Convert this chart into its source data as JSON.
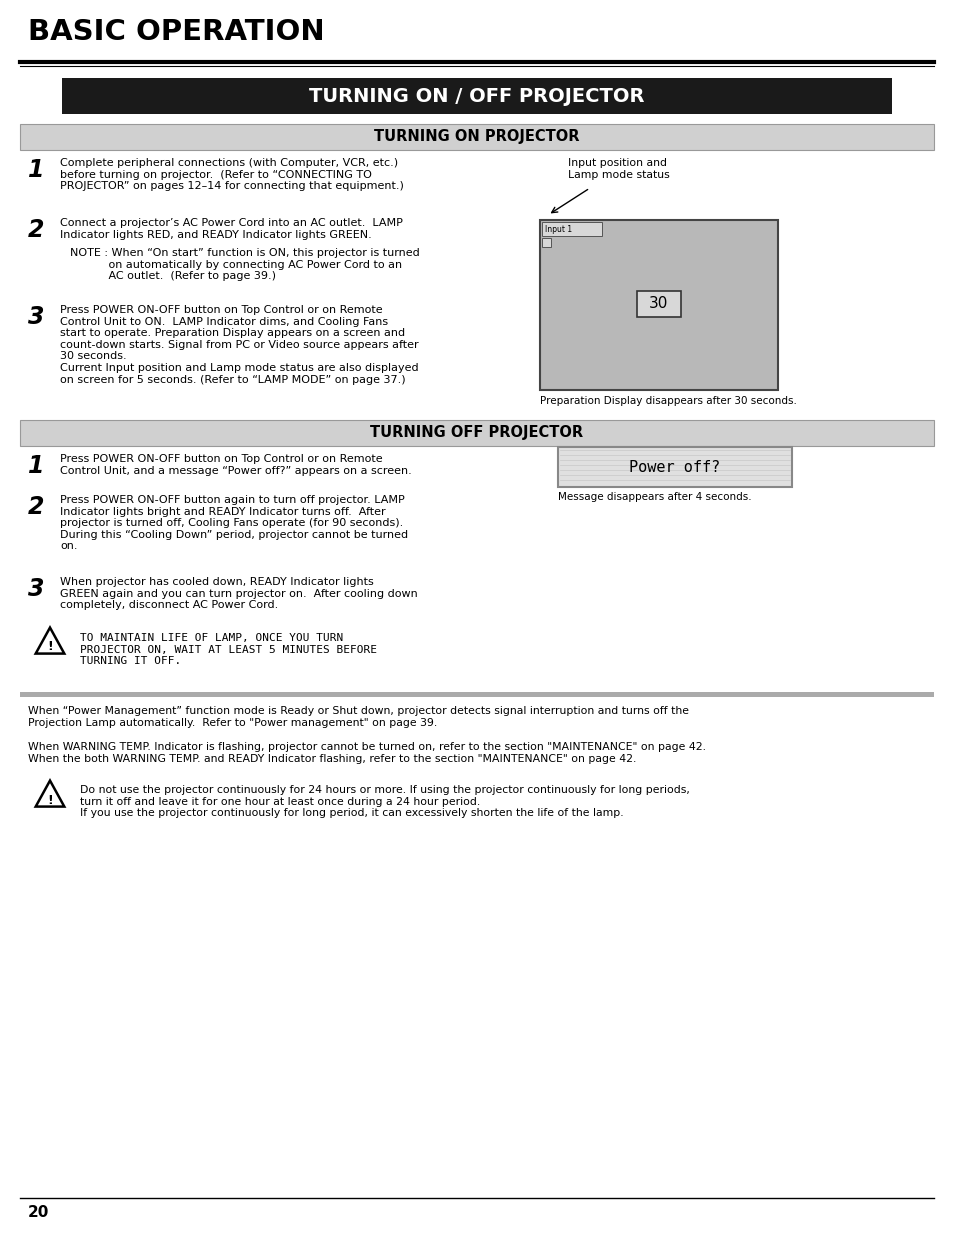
{
  "page_bg": "#ffffff",
  "main_title": "BASIC OPERATION",
  "section_title": "TURNING ON / OFF PROJECTOR",
  "section_title_bg": "#1a1a1a",
  "section_title_color": "#ffffff",
  "subsection1_title": "TURNING ON PROJECTOR",
  "subsection1_bg": "#d0d0d0",
  "subsection2_title": "TURNING OFF PROJECTOR",
  "subsection2_bg": "#d0d0d0",
  "page_number": "20",
  "screen_caption1": "Input position and\nLamp mode status",
  "screen_caption2": "Preparation Display disappears after 30 seconds.",
  "poweroff_caption": "Message disappears after 4 seconds.",
  "note1": "When “Power Management” function mode is Ready or Shut down, projector detects signal interruption and turns off the\nProjection Lamp automatically.  Refer to \"Power management\" on page 39.",
  "note2": "When WARNING TEMP. Indicator is flashing, projector cannot be turned on, refer to the section \"MAINTENANCE\" on page 42.\nWhen the both WARNING TEMP. and READY Indicator flashing, refer to the section \"MAINTENANCE\" on page 42.",
  "warning2": "Do not use the projector continuously for 24 hours or more. If using the projector continuously for long periods,\nturn it off and leave it for one hour at least once during a 24 hour period.\nIf you use the projector continuously for long period, it can excessively shorten the life of the lamp.",
  "warning1": "TO MAINTAIN LIFE OF LAMP, ONCE YOU TURN\nPROJECTOR ON, WAIT AT LEAST 5 MINUTES BEFORE\nTURNING IT OFF."
}
